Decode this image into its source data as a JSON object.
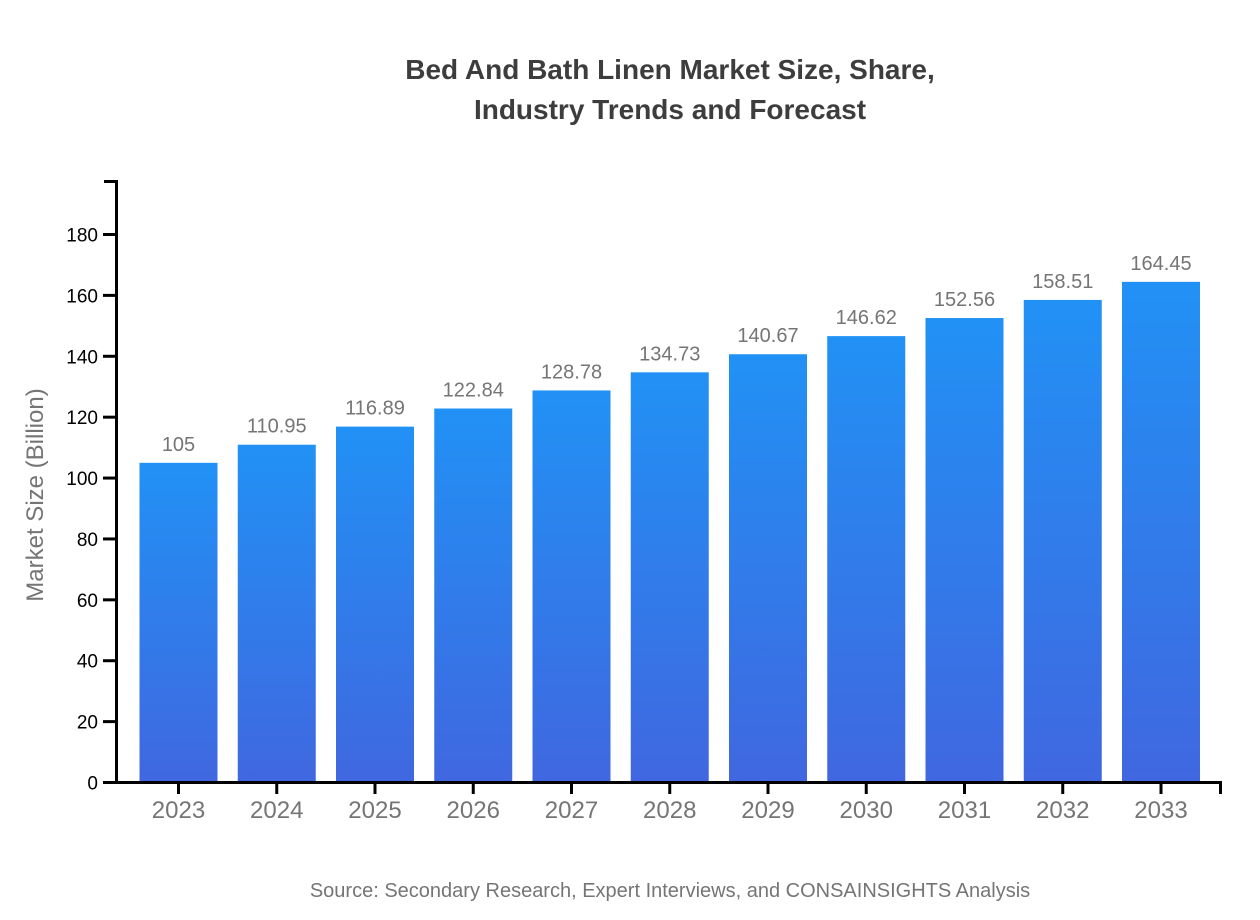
{
  "title": {
    "line1": "Bed And Bath Linen Market Size, Share,",
    "line2": "Industry Trends and Forecast"
  },
  "source": "Source: Secondary Research, Expert Interviews, and CONSAINSIGHTS Analysis",
  "chart_data": {
    "type": "bar",
    "title": "Bed And Bath Linen Market Size, Share, Industry Trends and Forecast",
    "categories": [
      "2023",
      "2024",
      "2025",
      "2026",
      "2027",
      "2028",
      "2029",
      "2030",
      "2031",
      "2032",
      "2033"
    ],
    "values": [
      105,
      110.95,
      116.89,
      122.84,
      128.78,
      134.73,
      140.67,
      146.62,
      152.56,
      158.51,
      164.45
    ],
    "value_labels": [
      "105",
      "110.95",
      "116.89",
      "122.84",
      "128.78",
      "134.73",
      "140.67",
      "146.62",
      "152.56",
      "158.51",
      "164.45"
    ],
    "xlabel": "",
    "ylabel": "Market Size (Billion)",
    "ylim": [
      0,
      197
    ],
    "yticks": [
      0,
      20,
      40,
      60,
      80,
      100,
      120,
      140,
      160,
      180
    ],
    "grid": false,
    "legend": null,
    "colors": {
      "bar_gradient_top": "#2191F5",
      "bar_gradient_bottom": "#4067E0",
      "axis": "#000000",
      "y_tick_label": "#000000",
      "value_label": "#757575",
      "category_label": "#757575",
      "title_text": "#3d3d3d",
      "source_text": "#757575",
      "background": "#ffffff"
    }
  }
}
